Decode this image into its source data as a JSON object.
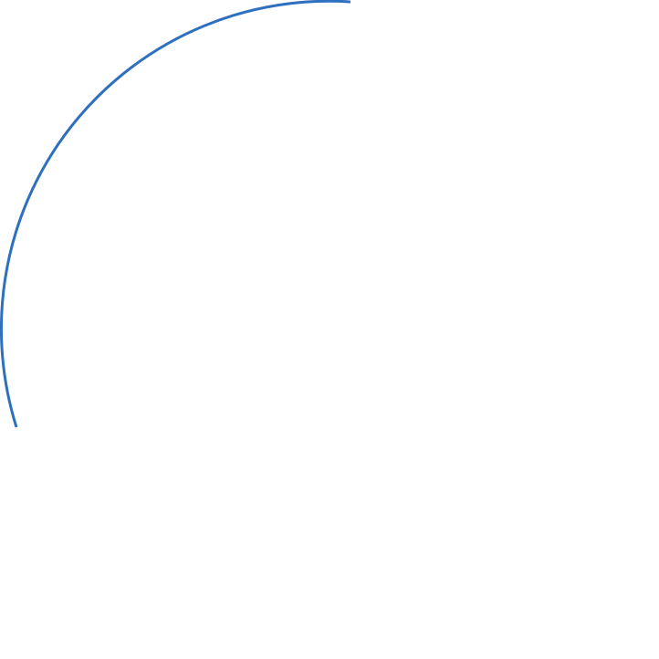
{
  "shape": {
    "type": "arc",
    "stroke_color": "#2E6FBF",
    "background_color": "#FFFFFF"
  }
}
